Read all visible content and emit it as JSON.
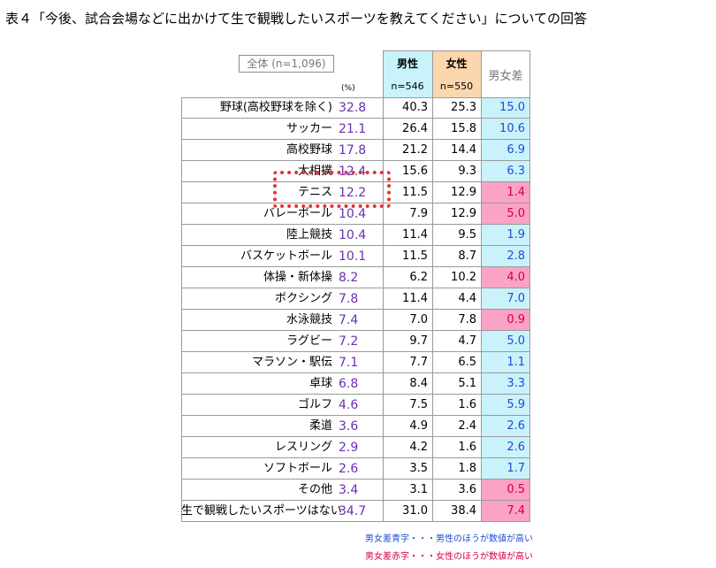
{
  "title": "表４「今後、試合会場などに出かけて生で観戦したいスポーツを教えてください」についての回答",
  "header": {
    "all_label": "全体 (n=1,096)",
    "unit": "(%)",
    "male": "男性",
    "male_n": "n=546",
    "female": "女性",
    "female_n": "n=550",
    "diff": "男女差"
  },
  "colors": {
    "male_header": "#c9f2fb",
    "female_header": "#fcd6ad",
    "blue_fill": "#c9f2fb",
    "blue_text": "#1f4fd4",
    "pink_fill": "#fba3c6",
    "pink_text": "#d40045",
    "all_text": "#6a2fb0",
    "highlight_border": "#e5322d"
  },
  "chart_data": {
    "type": "table",
    "columns": [
      "全体",
      "男性",
      "女性",
      "男女差"
    ],
    "rows": [
      {
        "label": "野球(高校野球を除く)",
        "all": "32.8",
        "male": "40.3",
        "female": "25.3",
        "diff": "15.0",
        "diff_color": "blue"
      },
      {
        "label": "サッカー",
        "all": "21.1",
        "male": "26.4",
        "female": "15.8",
        "diff": "10.6",
        "diff_color": "blue"
      },
      {
        "label": "高校野球",
        "all": "17.8",
        "male": "21.2",
        "female": "14.4",
        "diff": "6.9",
        "diff_color": "blue"
      },
      {
        "label": "大相撲",
        "all": "12.4",
        "male": "15.6",
        "female": "9.3",
        "diff": "6.3",
        "diff_color": "blue"
      },
      {
        "label": "テニス",
        "all": "12.2",
        "male": "11.5",
        "female": "12.9",
        "diff": "1.4",
        "diff_color": "pink"
      },
      {
        "label": "バレーボール",
        "all": "10.4",
        "male": "7.9",
        "female": "12.9",
        "diff": "5.0",
        "diff_color": "pink"
      },
      {
        "label": "陸上競技",
        "all": "10.4",
        "male": "11.4",
        "female": "9.5",
        "diff": "1.9",
        "diff_color": "blue"
      },
      {
        "label": "バスケットボール",
        "all": "10.1",
        "male": "11.5",
        "female": "8.7",
        "diff": "2.8",
        "diff_color": "blue"
      },
      {
        "label": "体操・新体操",
        "all": "8.2",
        "male": "6.2",
        "female": "10.2",
        "diff": "4.0",
        "diff_color": "pink"
      },
      {
        "label": "ボクシング",
        "all": "7.8",
        "male": "11.4",
        "female": "4.4",
        "diff": "7.0",
        "diff_color": "blue"
      },
      {
        "label": "水泳競技",
        "all": "7.4",
        "male": "7.0",
        "female": "7.8",
        "diff": "0.9",
        "diff_color": "pink"
      },
      {
        "label": "ラグビー",
        "all": "7.2",
        "male": "9.7",
        "female": "4.7",
        "diff": "5.0",
        "diff_color": "blue"
      },
      {
        "label": "マラソン・駅伝",
        "all": "7.1",
        "male": "7.7",
        "female": "6.5",
        "diff": "1.1",
        "diff_color": "blue"
      },
      {
        "label": "卓球",
        "all": "6.8",
        "male": "8.4",
        "female": "5.1",
        "diff": "3.3",
        "diff_color": "blue"
      },
      {
        "label": "ゴルフ",
        "all": "4.6",
        "male": "7.5",
        "female": "1.6",
        "diff": "5.9",
        "diff_color": "blue"
      },
      {
        "label": "柔道",
        "all": "3.6",
        "male": "4.9",
        "female": "2.4",
        "diff": "2.6",
        "diff_color": "blue"
      },
      {
        "label": "レスリング",
        "all": "2.9",
        "male": "4.2",
        "female": "1.6",
        "diff": "2.6",
        "diff_color": "blue"
      },
      {
        "label": "ソフトボール",
        "all": "2.6",
        "male": "3.5",
        "female": "1.8",
        "diff": "1.7",
        "diff_color": "blue"
      },
      {
        "label": "その他",
        "all": "3.4",
        "male": "3.1",
        "female": "3.6",
        "diff": "0.5",
        "diff_color": "pink"
      },
      {
        "label": "生で観戦したいスポーツはない",
        "all": "34.7",
        "male": "31.0",
        "female": "38.4",
        "diff": "7.4",
        "diff_color": "pink"
      }
    ],
    "highlighted_row": "テニス"
  },
  "legend": {
    "blue_note": "男女差青字・・・男性のほうが数値が高い",
    "pink_note": "男女差赤字・・・女性のほうが数値が高い"
  }
}
